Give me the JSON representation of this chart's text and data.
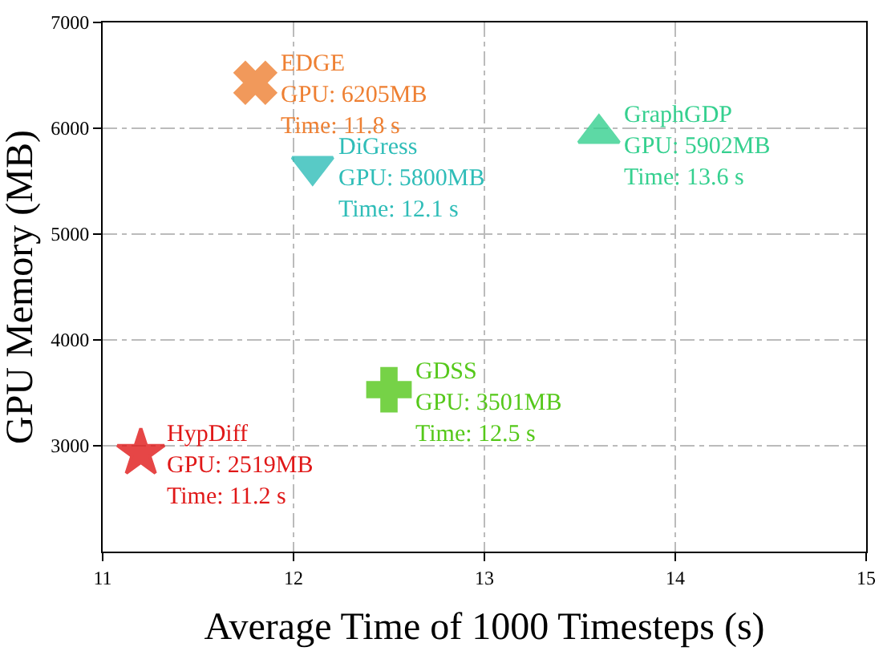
{
  "chart_data": {
    "type": "scatter",
    "xlabel": "Average Time of 1000 Timesteps (s)",
    "ylabel": "GPU Memory (MB)",
    "xlim": [
      11,
      15
    ],
    "ylim": [
      2000,
      7000
    ],
    "xticks": [
      11,
      12,
      13,
      14,
      15
    ],
    "yticks": [
      3000,
      4000,
      5000,
      6000,
      7000
    ],
    "grid": true,
    "legend": false,
    "series": [
      {
        "name": "EDGE",
        "color": "#ee8033",
        "marker": "x",
        "x": [
          11.8
        ],
        "values": [
          6430
        ],
        "value_labels": [
          "GPU: 6205MB\nTime: 11.8 s"
        ]
      },
      {
        "name": "DiGress",
        "color": "#2fbdb8",
        "marker": "triangle-down",
        "x": [
          12.1
        ],
        "values": [
          5640
        ],
        "value_labels": [
          "GPU: 5800MB\nTime: 12.1 s"
        ]
      },
      {
        "name": "GraphGDP",
        "color": "#35d08f",
        "marker": "triangle",
        "x": [
          13.6
        ],
        "values": [
          5950
        ],
        "value_labels": [
          "GPU: 5902MB\nTime: 13.6 s"
        ]
      },
      {
        "name": "GDSS",
        "color": "#55c81a",
        "marker": "cross",
        "x": [
          12.5
        ],
        "values": [
          3530
        ],
        "value_labels": [
          "GPU: 3501MB\nTime: 12.5 s"
        ]
      },
      {
        "name": "HypDiff",
        "color": "#e01818",
        "marker": "star",
        "x": [
          11.2
        ],
        "values": [
          2930
        ],
        "value_labels": [
          "GPU: 2519MB\nTime: 11.2 s"
        ]
      }
    ]
  }
}
